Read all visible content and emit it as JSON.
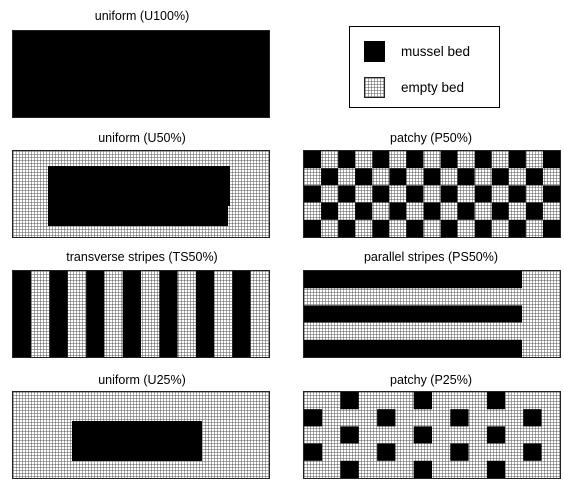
{
  "colors": {
    "mussel": "#000000",
    "empty_fill": "#ffffff",
    "grid_line": "#555555"
  },
  "legend": {
    "items": [
      {
        "label": "mussel bed",
        "swatch": "solid"
      },
      {
        "label": "empty bed",
        "swatch": "grid"
      }
    ]
  },
  "panels": [
    {
      "id": "u100",
      "title": "uniform (U100%)",
      "pattern": "full"
    },
    {
      "id": "u50",
      "title": "uniform (U50%)",
      "pattern": "center-block"
    },
    {
      "id": "p50",
      "title": "patchy (P50%)",
      "pattern": "checkerboard"
    },
    {
      "id": "ts50",
      "title": "transverse stripes (TS50%)",
      "pattern": "vertical-stripes"
    },
    {
      "id": "ps50",
      "title": "parallel stripes (PS50%)",
      "pattern": "horizontal-stripes"
    },
    {
      "id": "u25",
      "title": "uniform (U25%)",
      "pattern": "center-block"
    },
    {
      "id": "p25",
      "title": "patchy (P25%)",
      "pattern": "sparse-checker"
    }
  ]
}
